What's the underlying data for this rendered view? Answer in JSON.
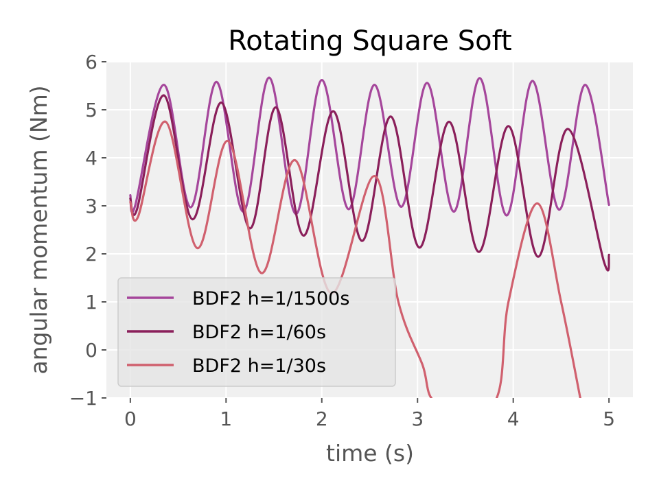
{
  "chart_data": {
    "type": "line",
    "title": "Rotating Square Soft",
    "xlabel": "time (s)",
    "ylabel": "angular momentum (Nm)",
    "xlim": [
      -0.25,
      5.25
    ],
    "ylim": [
      -1,
      6
    ],
    "xticks": [
      0,
      1,
      2,
      3,
      4,
      5
    ],
    "yticks": [
      -1,
      0,
      1,
      2,
      3,
      4,
      5,
      6
    ],
    "xtick_labels": [
      "0",
      "1",
      "2",
      "3",
      "4",
      "5"
    ],
    "ytick_labels": [
      "−1",
      "0",
      "1",
      "2",
      "3",
      "4",
      "5",
      "6"
    ],
    "grid": true,
    "legend_position": "lower-left",
    "series": [
      {
        "name": "BDF2 h=1/1500s",
        "color": "#a5469b",
        "x": [
          0,
          0.05,
          0.35,
          0.63,
          0.9,
          1.18,
          1.45,
          1.73,
          2.0,
          2.28,
          2.55,
          2.83,
          3.1,
          3.38,
          3.65,
          3.93,
          4.2,
          4.48,
          4.75,
          5.0
        ],
        "y": [
          3.22,
          3.0,
          5.52,
          2.97,
          5.58,
          2.88,
          5.67,
          2.83,
          5.62,
          2.93,
          5.52,
          2.98,
          5.56,
          2.88,
          5.66,
          2.8,
          5.6,
          2.92,
          5.52,
          3.02
        ]
      },
      {
        "name": "BDF2 h=1/60s",
        "color": "#8a1f5a",
        "x": [
          0,
          0.07,
          0.35,
          0.65,
          0.95,
          1.25,
          1.52,
          1.81,
          2.12,
          2.42,
          2.72,
          3.02,
          3.33,
          3.64,
          3.95,
          4.26,
          4.57,
          4.95,
          5.0
        ],
        "y": [
          3.15,
          2.93,
          5.3,
          2.72,
          5.15,
          2.53,
          5.05,
          2.38,
          4.97,
          2.27,
          4.86,
          2.13,
          4.75,
          2.04,
          4.66,
          1.94,
          4.6,
          1.82,
          1.98
        ]
      },
      {
        "name": "BDF2 h=1/30s",
        "color": "#d0606e",
        "x": [
          0,
          0.08,
          0.37,
          0.7,
          1.02,
          1.37,
          1.72,
          2.1,
          2.55,
          2.8,
          3.05,
          3.2,
          3.8,
          3.95,
          4.25,
          4.5,
          4.7
        ],
        "y": [
          3.08,
          2.77,
          4.75,
          2.12,
          4.35,
          1.6,
          3.95,
          1.18,
          3.62,
          1.0,
          -0.3,
          -1.1,
          -1.1,
          1.0,
          3.05,
          1.0,
          -1.0
        ]
      }
    ]
  }
}
